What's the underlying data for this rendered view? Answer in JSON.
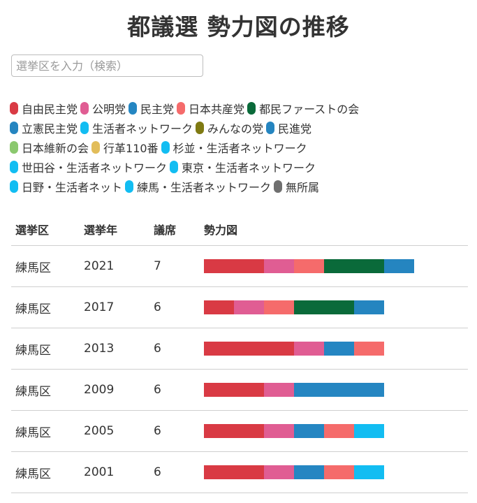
{
  "title": "都議選 勢力図の推移",
  "search": {
    "placeholder": "選挙区を入力（検索）"
  },
  "legend": [
    {
      "name": "自由民主党",
      "color": "#d93a44"
    },
    {
      "name": "公明党",
      "color": "#e05d93"
    },
    {
      "name": "民主党",
      "color": "#2586c2"
    },
    {
      "name": "日本共産党",
      "color": "#f56b6b"
    },
    {
      "name": "都民ファーストの会",
      "color": "#0a6a3a"
    },
    {
      "name": "立憲民主党",
      "color": "#2585c0"
    },
    {
      "name": "生活者ネットワーク",
      "color": "#12bdf2"
    },
    {
      "name": "みんなの党",
      "color": "#7f7a12"
    },
    {
      "name": "民進党",
      "color": "#2585c0"
    },
    {
      "name": "日本維新の会",
      "color": "#8bc86e"
    },
    {
      "name": "行革110番",
      "color": "#e2bd5a"
    },
    {
      "name": "杉並・生活者ネットワーク",
      "color": "#12bdf2"
    },
    {
      "name": "世田谷・生活者ネットワーク",
      "color": "#12bdf2"
    },
    {
      "name": "東京・生活者ネットワーク",
      "color": "#12bdf2"
    },
    {
      "name": "日野・生活者ネット",
      "color": "#12bdf2"
    },
    {
      "name": "練馬・生活者ネットワーク",
      "color": "#12bdf2"
    },
    {
      "name": "無所属",
      "color": "#6f6f6f"
    }
  ],
  "legend_rows": [
    [
      0,
      1,
      2,
      3,
      4
    ],
    [
      5,
      6,
      7,
      8
    ],
    [
      9,
      10,
      11
    ],
    [
      12,
      13
    ],
    [
      14,
      15,
      16
    ]
  ],
  "table": {
    "headers": {
      "district": "選挙区",
      "year": "選挙年",
      "seats": "議席",
      "chart": "勢力図"
    }
  },
  "chart_data": {
    "type": "bar",
    "orientation": "horizontal-stacked",
    "categories": [
      "2021",
      "2017",
      "2013",
      "2009",
      "2005",
      "2001"
    ],
    "district": "練馬区",
    "seats": [
      7,
      6,
      6,
      6,
      6,
      6
    ],
    "rows": [
      {
        "district": "練馬区",
        "year": "2021",
        "seats": "7",
        "segments": [
          {
            "party": "自由民主党",
            "seats": 2
          },
          {
            "party": "公明党",
            "seats": 1
          },
          {
            "party": "日本共産党",
            "seats": 1
          },
          {
            "party": "都民ファーストの会",
            "seats": 2
          },
          {
            "party": "立憲民主党",
            "seats": 1
          }
        ]
      },
      {
        "district": "練馬区",
        "year": "2017",
        "seats": "6",
        "segments": [
          {
            "party": "自由民主党",
            "seats": 1
          },
          {
            "party": "公明党",
            "seats": 1
          },
          {
            "party": "日本共産党",
            "seats": 1
          },
          {
            "party": "都民ファーストの会",
            "seats": 2
          },
          {
            "party": "民進党",
            "seats": 1
          }
        ]
      },
      {
        "district": "練馬区",
        "year": "2013",
        "seats": "6",
        "segments": [
          {
            "party": "自由民主党",
            "seats": 3
          },
          {
            "party": "公明党",
            "seats": 1
          },
          {
            "party": "民主党",
            "seats": 1
          },
          {
            "party": "日本共産党",
            "seats": 1
          }
        ]
      },
      {
        "district": "練馬区",
        "year": "2009",
        "seats": "6",
        "segments": [
          {
            "party": "自由民主党",
            "seats": 2
          },
          {
            "party": "公明党",
            "seats": 1
          },
          {
            "party": "民主党",
            "seats": 3
          }
        ]
      },
      {
        "district": "練馬区",
        "year": "2005",
        "seats": "6",
        "segments": [
          {
            "party": "自由民主党",
            "seats": 2
          },
          {
            "party": "公明党",
            "seats": 1
          },
          {
            "party": "民主党",
            "seats": 1
          },
          {
            "party": "日本共産党",
            "seats": 1
          },
          {
            "party": "練馬・生活者ネットワーク",
            "seats": 1
          }
        ]
      },
      {
        "district": "練馬区",
        "year": "2001",
        "seats": "6",
        "segments": [
          {
            "party": "自由民主党",
            "seats": 2
          },
          {
            "party": "公明党",
            "seats": 1
          },
          {
            "party": "民主党",
            "seats": 1
          },
          {
            "party": "日本共産党",
            "seats": 1
          },
          {
            "party": "練馬・生活者ネットワーク",
            "seats": 1
          }
        ]
      }
    ]
  }
}
